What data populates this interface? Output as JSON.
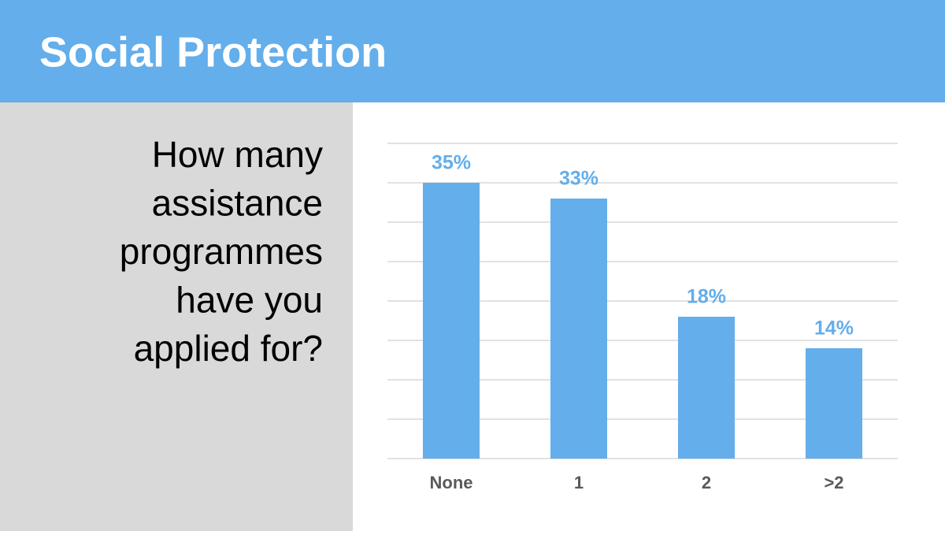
{
  "header": {
    "title": "Social Protection"
  },
  "question": [
    "How many",
    "assistance",
    "programmes",
    "have you",
    "applied for?"
  ],
  "chart_data": {
    "type": "bar",
    "categories": [
      "None",
      "1",
      "2",
      ">2"
    ],
    "values": [
      35,
      33,
      18,
      14
    ],
    "value_labels": [
      "35%",
      "33%",
      "18%",
      "14%"
    ],
    "color": "#63aeeb",
    "ylim": [
      0,
      40
    ],
    "yticks": [
      0,
      5,
      10,
      15,
      20,
      25,
      30,
      35,
      40
    ],
    "grid": true
  }
}
